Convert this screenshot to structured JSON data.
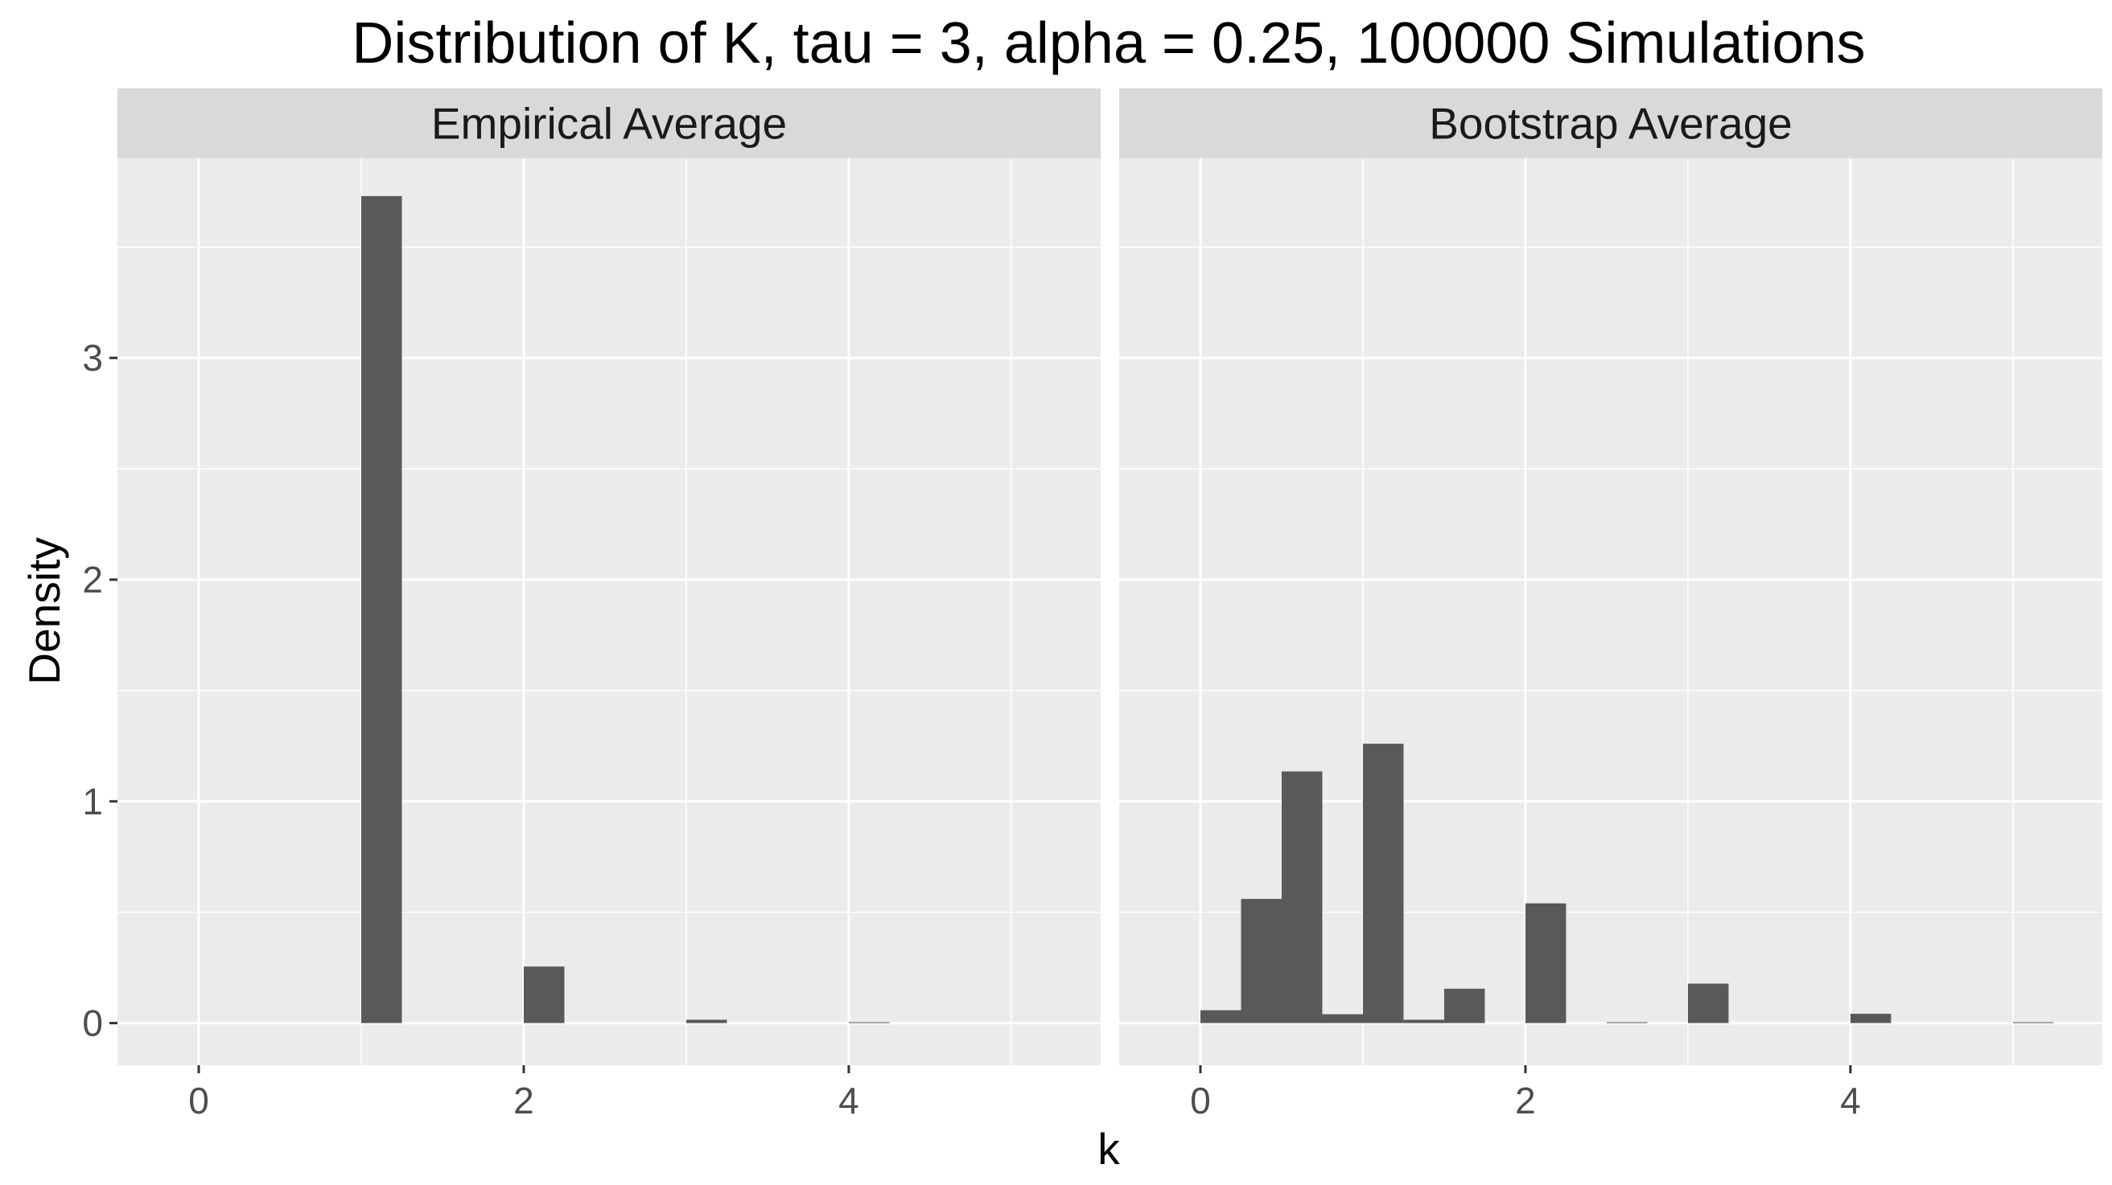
{
  "chart_data": {
    "type": "bar",
    "title": "Distribution of K, tau = 3, alpha = 0.25, 100000 Simulations",
    "xlabel": "k",
    "ylabel": "Density",
    "xlim": [
      -0.5,
      5.55
    ],
    "ylim": [
      -0.19,
      3.9
    ],
    "x_ticks": [
      0,
      2,
      4
    ],
    "y_ticks": [
      0,
      1,
      2,
      3
    ],
    "grid": true,
    "bin_width": 0.25,
    "colors": {
      "bar": "#595959",
      "panel_bg": "#ebebeb",
      "strip_bg": "#d9d9d9",
      "grid": "#ffffff"
    },
    "facets": [
      {
        "name": "Empirical Average",
        "bins": [
          {
            "x": 1.125,
            "y": 3.73
          },
          {
            "x": 2.125,
            "y": 0.255
          },
          {
            "x": 3.125,
            "y": 0.015
          },
          {
            "x": 4.125,
            "y": 0.004
          }
        ]
      },
      {
        "name": "Bootstrap Average",
        "bins": [
          {
            "x": 0.125,
            "y": 0.058
          },
          {
            "x": 0.375,
            "y": 0.56
          },
          {
            "x": 0.625,
            "y": 1.135
          },
          {
            "x": 0.875,
            "y": 0.04
          },
          {
            "x": 1.125,
            "y": 1.26
          },
          {
            "x": 1.375,
            "y": 0.015
          },
          {
            "x": 1.625,
            "y": 0.155
          },
          {
            "x": 2.125,
            "y": 0.54
          },
          {
            "x": 2.625,
            "y": 0.004
          },
          {
            "x": 3.125,
            "y": 0.178
          },
          {
            "x": 4.125,
            "y": 0.042
          },
          {
            "x": 5.125,
            "y": 0.004
          }
        ]
      }
    ]
  }
}
